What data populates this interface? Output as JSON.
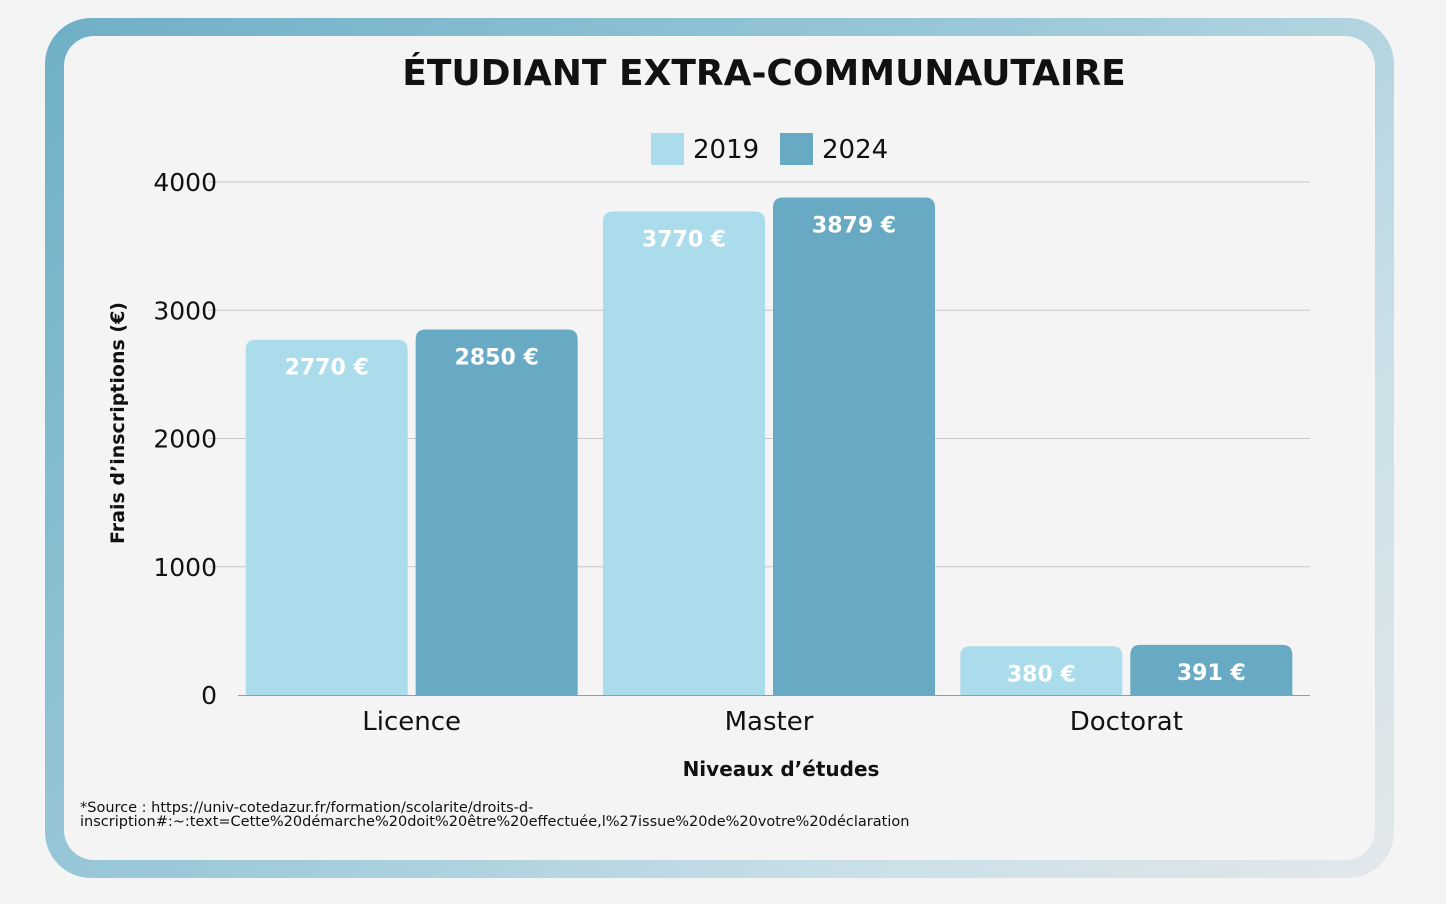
{
  "chart_data": {
    "type": "bar",
    "title": "ÉTUDIANT EXTRA-COMMUNAUTAIRE",
    "xlabel": "Niveaux d’études",
    "ylabel": "Frais d’inscriptions (€)",
    "categories": [
      "Licence",
      "Master",
      "Doctorat"
    ],
    "series": [
      {
        "name": "2019",
        "values": [
          2770,
          3770,
          380
        ],
        "labels": [
          "2770 €",
          "3770 €",
          "380 €"
        ],
        "color": "#aadcec"
      },
      {
        "name": "2024",
        "values": [
          2850,
          3879,
          391
        ],
        "labels": [
          "2850 €",
          "3879 €",
          "391 €"
        ],
        "color": "#68aac3"
      }
    ],
    "ylim": [
      0,
      4000
    ],
    "yticks": [
      0,
      1000,
      2000,
      3000,
      4000
    ],
    "grid": true,
    "legend": "top-center"
  },
  "source_note": "*Source : https://univ-cotedazur.fr/formation/scolarite/droits-d-\ninscription#:~:text=Cette%20démarche%20doit%20être%20effectuée,l%27issue%20de%20votre%20déclaration",
  "colors": {
    "frame_start": "#6fafc6",
    "frame_end": "#e3e8ea",
    "panel": "#f4f4f5",
    "grid": "#c8c8c8",
    "text": "#111111"
  }
}
